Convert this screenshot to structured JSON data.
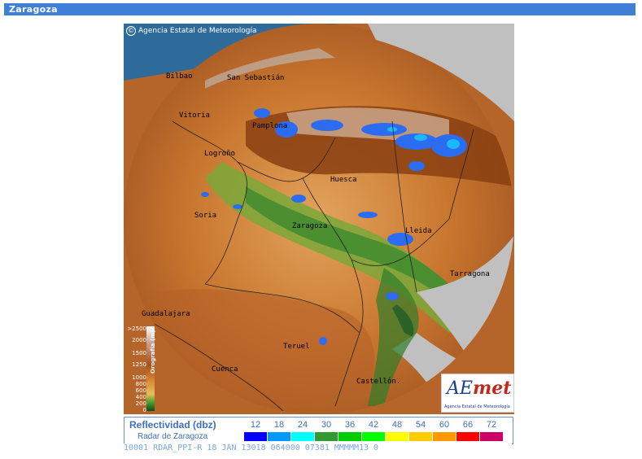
{
  "header": {
    "title": "Zaragoza"
  },
  "map": {
    "credit": "Agencia Estatal de Meteorología",
    "cities": [
      {
        "name": "Bilbao"
      },
      {
        "name": "San Sebastián"
      },
      {
        "name": "Vitoria"
      },
      {
        "name": "Pamplona"
      },
      {
        "name": "Logroño"
      },
      {
        "name": "Huesca"
      },
      {
        "name": "Soria"
      },
      {
        "name": "Zaragoza"
      },
      {
        "name": "Lleida"
      },
      {
        "name": "Tarragona"
      },
      {
        "name": "Guadalajara"
      },
      {
        "name": "Teruel"
      },
      {
        "name": "Cuenca"
      },
      {
        "name": "Castellón."
      }
    ],
    "orography": {
      "label": "Orografía (m)",
      "ticks": [
        ">2500",
        "2000",
        "1500",
        "1250",
        "1000",
        "800",
        "600",
        "400",
        "200",
        "0"
      ]
    },
    "logo": {
      "mark_a": "AE",
      "mark_b": "met",
      "subtitle": "Agencia Estatal de Meteorología"
    }
  },
  "legend": {
    "title": "Reflectividad (dbz)",
    "subtitle": "Radar de Zaragoza",
    "levels": [
      {
        "value": "12",
        "color": "#0000ff"
      },
      {
        "value": "18",
        "color": "#0099ff"
      },
      {
        "value": "24",
        "color": "#00ffff"
      },
      {
        "value": "30",
        "color": "#339933"
      },
      {
        "value": "36",
        "color": "#00cc00"
      },
      {
        "value": "42",
        "color": "#00ff00"
      },
      {
        "value": "48",
        "color": "#ffff00"
      },
      {
        "value": "54",
        "color": "#ffcc00"
      },
      {
        "value": "60",
        "color": "#ff9900"
      },
      {
        "value": "66",
        "color": "#ff0000"
      },
      {
        "value": "72",
        "color": "#cc0066"
      }
    ]
  },
  "ticker": {
    "text": "10001 RDAR_PPI-R   18 JAN 13018 064000 07381 MMMMM13 0"
  },
  "colors": {
    "title_bar": "#3f7fd9",
    "legend_text": "#3f6fc2",
    "sea": "#c0c0c0"
  }
}
